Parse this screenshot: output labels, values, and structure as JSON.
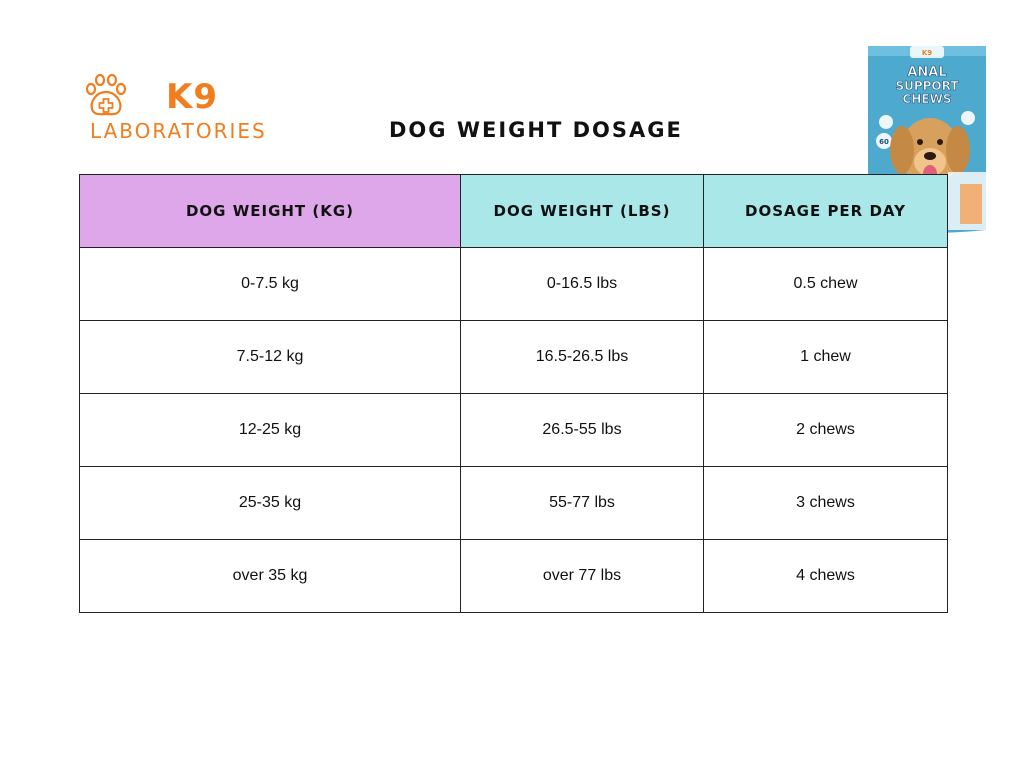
{
  "brand": {
    "name": "K9",
    "subtitle": "LABORATORIES",
    "color": "#f07d1e"
  },
  "title": "DOG WEIGHT DOSAGE",
  "product": {
    "brand_small": "K9",
    "label_line1": "ANAL",
    "label_line2": "SUPPORT",
    "label_line3": "CHEWS",
    "count": "60",
    "bag_color": "#4ea9cf"
  },
  "table": {
    "headers": [
      "DOG WEIGHT (KG)",
      "DOG WEIGHT (LBS)",
      "DOSAGE PER DAY"
    ],
    "header_colors": [
      "#dda7ea",
      "#a9e7e8",
      "#a9e7e8"
    ],
    "rows": [
      [
        "0-7.5 kg",
        "0-16.5 lbs",
        "0.5 chew"
      ],
      [
        "7.5-12 kg",
        "16.5-26.5 lbs",
        "1 chew"
      ],
      [
        "12-25 kg",
        "26.5-55 lbs",
        "2 chews"
      ],
      [
        "25-35 kg",
        "55-77 lbs",
        "3 chews"
      ],
      [
        "over 35 kg",
        "over 77 lbs",
        "4 chews"
      ]
    ]
  }
}
